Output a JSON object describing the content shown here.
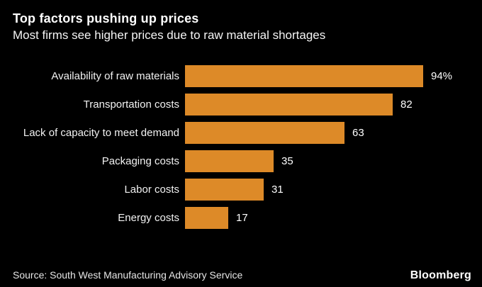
{
  "header": {
    "title": "Top factors pushing up prices",
    "subtitle": "Most firms see higher prices due to raw material shortages"
  },
  "chart_data": {
    "type": "bar",
    "orientation": "horizontal",
    "title": "Top factors pushing up prices",
    "subtitle": "Most firms see higher prices due to raw material shortages",
    "categories": [
      "Availability of raw materials",
      "Transportation costs",
      "Lack of capacity to meet demand",
      "Packaging costs",
      "Labor costs",
      "Energy costs"
    ],
    "values": [
      94,
      82,
      63,
      35,
      31,
      17
    ],
    "value_labels": [
      "94%",
      "82",
      "63",
      "35",
      "31",
      "17"
    ],
    "unit": "%",
    "xlim": [
      0,
      100
    ],
    "grid": false,
    "legend": "none",
    "bar_color": "#DD8A28",
    "background_color": "#000000"
  },
  "footer": {
    "source": "Source: South West Manufacturing Advisory Service",
    "brand": "Bloomberg"
  }
}
